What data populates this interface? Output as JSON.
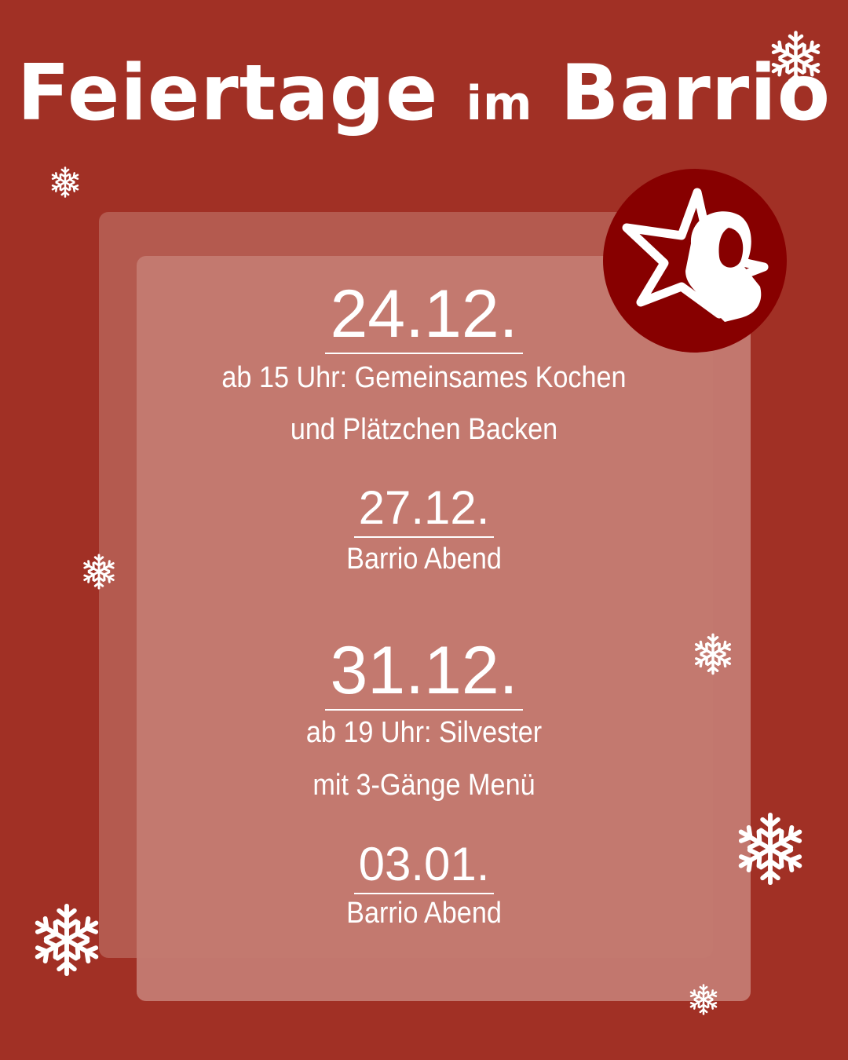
{
  "title": {
    "main": "Feiertage",
    "connector": "im",
    "name": "Barrio"
  },
  "events": [
    {
      "date": "24.12.",
      "lines": [
        "ab 15 Uhr: Gemeinsames Kochen",
        "und Plätzchen Backen"
      ]
    },
    {
      "date": "27.12.",
      "lines": [
        "Barrio Abend"
      ]
    },
    {
      "date": "31.12.",
      "lines": [
        "ab 19 Uhr: Silvester",
        "mit 3-Gänge Menü"
      ]
    },
    {
      "date": "03.01.",
      "lines": [
        "Barrio Abend"
      ]
    }
  ],
  "colors": {
    "background": "#a13025",
    "panel_outer": "#b45a4f",
    "panel_inner": "#c37a71",
    "logo": "#870000",
    "text": "#ffffff"
  },
  "icons": [
    "snowflake-icon",
    "star-portrait-logo"
  ]
}
